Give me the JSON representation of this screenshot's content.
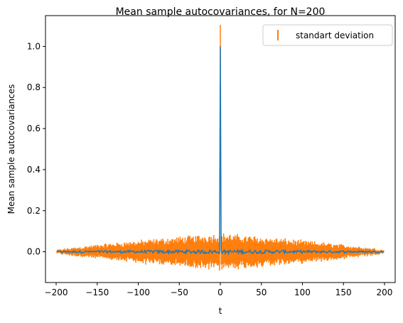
{
  "chart_data": {
    "type": "line",
    "title": "Mean sample autocovariances, for N=200",
    "xlabel": "t",
    "ylabel": "Mean sample autocovariances",
    "xlim": [
      -213,
      213
    ],
    "ylim": [
      -0.15,
      1.15
    ],
    "xticks": [
      -200,
      -150,
      -100,
      -50,
      0,
      50,
      100,
      150,
      200
    ],
    "xtick_labels": [
      "−200",
      "−150",
      "−100",
      "−50",
      "0",
      "50",
      "100",
      "150",
      "200"
    ],
    "yticks": [
      0.0,
      0.2,
      0.4,
      0.6,
      0.8,
      1.0
    ],
    "ytick_labels": [
      "0.0",
      "0.2",
      "0.4",
      "0.6",
      "0.8",
      "1.0"
    ],
    "grid": false,
    "legend": {
      "position": "top-right",
      "entries": [
        "standart deviation"
      ]
    },
    "series": [
      {
        "kind": "errorbar",
        "color": "#ff7f0e",
        "t_range": [
          -199,
          199
        ],
        "mean_at_zero": 1.0,
        "std_at_zero": 0.105,
        "std_near_zero": 0.07,
        "std_at_edges": 0.005,
        "mean_noise_amplitude": 0.01
      },
      {
        "kind": "mean-line",
        "color": "#1f77b4"
      }
    ]
  }
}
